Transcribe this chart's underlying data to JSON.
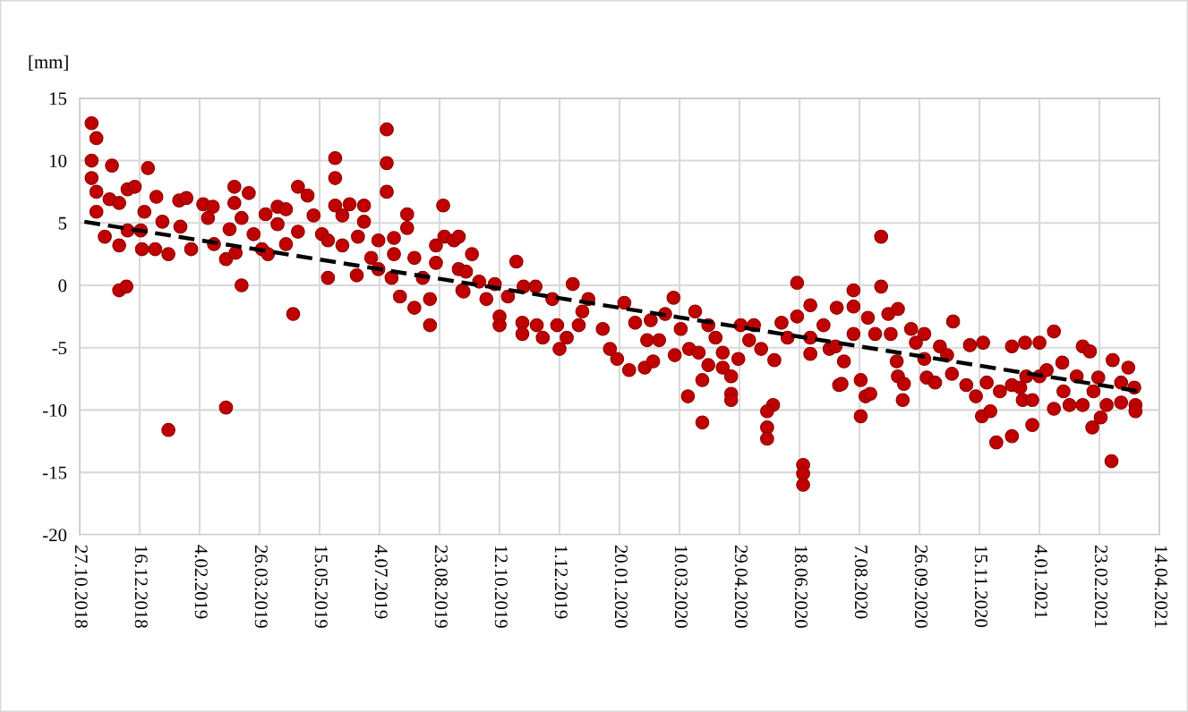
{
  "chart_data": {
    "type": "scatter",
    "ylabel": "[mm]",
    "xlim": [
      "2018-10-27",
      "2021-04-14"
    ],
    "xticks": [
      {
        "value": "2018-10-27",
        "label": "27.10.2018"
      },
      {
        "value": "2018-12-16",
        "label": "16.12.2018"
      },
      {
        "value": "2019-02-04",
        "label": "4.02.2019"
      },
      {
        "value": "2019-03-26",
        "label": "26.03.2019"
      },
      {
        "value": "2019-05-15",
        "label": "15.05.2019"
      },
      {
        "value": "2019-07-04",
        "label": "4.07.2019"
      },
      {
        "value": "2019-08-23",
        "label": "23.08.2019"
      },
      {
        "value": "2019-10-12",
        "label": "12.10.2019"
      },
      {
        "value": "2019-12-01",
        "label": "1.12.2019"
      },
      {
        "value": "2020-01-20",
        "label": "20.01.2020"
      },
      {
        "value": "2020-03-10",
        "label": "10.03.2020"
      },
      {
        "value": "2020-04-29",
        "label": "29.04.2020"
      },
      {
        "value": "2020-06-18",
        "label": "18.06.2020"
      },
      {
        "value": "2020-08-07",
        "label": "7.08.2020"
      },
      {
        "value": "2020-09-26",
        "label": "26.09.2020"
      },
      {
        "value": "2020-11-15",
        "label": "15.11.2020"
      },
      {
        "value": "2021-01-04",
        "label": "4.01.2021"
      },
      {
        "value": "2021-02-23",
        "label": "23.02.2021"
      },
      {
        "value": "2021-04-14",
        "label": "14.04.2021"
      }
    ],
    "ylim": [
      -20,
      15
    ],
    "yticks": [
      -20,
      -15,
      -10,
      -5,
      0,
      5,
      10,
      15
    ],
    "grid": true,
    "series": [
      {
        "color": "#c00000",
        "marker": "circle",
        "x": [
          "2018-11-06",
          "2018-11-10",
          "2018-11-06",
          "2018-11-23",
          "2018-12-23",
          "2018-11-06",
          "2018-11-10",
          "2018-11-21",
          "2018-11-29",
          "2018-12-06",
          "2018-12-12",
          "2018-11-10",
          "2018-11-17",
          "2018-11-29",
          "2018-11-29",
          "2018-12-05",
          "2018-12-06",
          "2018-12-17",
          "2018-12-18",
          "2018-12-29",
          "2019-01-09",
          "2019-01-09",
          "2018-12-30",
          "2018-12-20",
          "2019-01-04",
          "2019-01-18",
          "2019-01-24",
          "2019-01-19",
          "2019-01-28",
          "2019-02-07",
          "2019-02-15",
          "2019-02-11",
          "2019-02-16",
          "2019-02-26",
          "2019-03-06",
          "2019-03-11",
          "2019-02-26",
          "2019-03-05",
          "2019-03-05",
          "2019-03-17",
          "2019-03-11",
          "2019-03-21",
          "2019-03-28",
          "2019-04-02",
          "2019-03-31",
          "2019-03-01",
          "2019-04-27",
          "2019-05-05",
          "2019-04-10",
          "2019-04-17",
          "2019-04-10",
          "2019-04-27",
          "2019-04-17",
          "2019-05-10",
          "2019-04-23",
          "2019-05-22",
          "2019-05-28",
          "2019-05-28",
          "2019-05-28",
          "2019-06-03",
          "2019-06-09",
          "2019-06-21",
          "2019-06-21",
          "2019-05-17",
          "2019-05-22",
          "2019-06-03",
          "2019-06-16",
          "2019-06-15",
          "2019-07-10",
          "2019-07-10",
          "2019-07-10",
          "2019-07-03",
          "2019-06-27",
          "2019-07-03",
          "2019-07-16",
          "2019-07-16",
          "2019-07-27",
          "2019-07-27",
          "2019-07-14",
          "2019-07-21",
          "2019-08-02",
          "2019-08-02",
          "2019-08-15",
          "2019-08-15",
          "2019-08-09",
          "2019-08-26",
          "2019-08-20",
          "2019-08-27",
          "2019-09-04",
          "2019-08-20",
          "2019-09-08",
          "2019-09-11",
          "2019-09-08",
          "2019-09-19",
          "2019-09-14",
          "2019-09-12",
          "2019-09-25",
          "2019-10-01",
          "2019-10-08",
          "2019-10-12",
          "2019-10-12",
          "2019-10-19",
          "2019-10-26",
          "2019-11-01",
          "2019-11-11",
          "2019-10-31",
          "2019-10-31",
          "2019-11-12",
          "2019-11-17",
          "2019-11-25",
          "2019-11-29",
          "2019-12-01",
          "2019-12-07",
          "2019-12-12",
          "2019-12-20",
          "2019-12-25",
          "2019-12-17",
          "2020-01-06",
          "2020-01-12",
          "2020-01-18",
          "2020-01-24",
          "2020-01-28",
          "2020-02-02",
          "2020-02-10",
          "2020-02-12",
          "2020-02-15",
          "2020-02-17",
          "2020-02-22",
          "2020-02-27",
          "2020-03-05",
          "2020-03-06",
          "2020-03-11",
          "2020-03-18",
          "2020-03-26",
          "2020-03-17",
          "2020-03-29",
          "2020-03-29",
          "2020-03-23",
          "2020-04-03",
          "2020-04-09",
          "2020-04-03",
          "2020-04-15",
          "2020-04-15",
          "2020-04-22",
          "2020-04-22",
          "2020-04-22",
          "2020-04-30",
          "2020-04-28",
          "2020-05-07",
          "2020-05-11",
          "2020-05-17",
          "2020-05-28",
          "2020-05-27",
          "2020-05-22",
          "2020-05-22",
          "2020-05-22",
          "2020-06-03",
          "2020-06-08",
          "2020-06-16",
          "2020-06-16",
          "2020-06-21",
          "2020-06-21",
          "2020-06-21",
          "2020-06-27",
          "2020-06-27",
          "2020-06-27",
          "2020-07-08",
          "2020-07-13",
          "2020-07-19",
          "2020-07-21",
          "2020-08-02",
          "2020-08-02",
          "2020-07-18",
          "2020-07-25",
          "2020-07-23",
          "2020-08-02",
          "2020-08-08",
          "2020-08-12",
          "2020-08-08",
          "2020-08-16",
          "2020-08-14",
          "2020-08-20",
          "2020-08-25",
          "2020-08-25",
          "2020-08-31",
          "2020-09-08",
          "2020-09-02",
          "2020-09-07",
          "2020-09-08",
          "2020-09-13",
          "2020-09-12",
          "2020-09-19",
          "2020-09-23",
          "2020-09-30",
          "2020-09-30",
          "2020-10-02",
          "2020-10-13",
          "2020-10-09",
          "2020-10-19",
          "2020-10-24",
          "2020-10-23",
          "2020-11-07",
          "2020-11-18",
          "2020-11-04",
          "2020-11-12",
          "2020-11-17",
          "2020-11-24",
          "2020-11-29",
          "2020-12-12",
          "2020-11-21",
          "2020-12-02",
          "2020-12-12",
          "2020-12-12",
          "2020-12-21",
          "2020-12-23",
          "2020-12-24",
          "2021-01-04",
          "2021-01-16",
          "2020-12-29",
          "2020-12-19",
          "2020-12-29",
          "2021-01-04",
          "2021-01-10",
          "2021-01-16",
          "2021-01-23",
          "2021-01-24",
          "2021-01-29",
          "2021-02-04",
          "2021-02-09",
          "2021-02-09",
          "2021-02-15",
          "2021-02-18",
          "2021-02-17",
          "2021-02-22",
          "2021-02-24",
          "2021-03-01",
          "2021-03-05",
          "2021-03-06",
          "2021-03-13",
          "2021-03-19",
          "2021-03-13",
          "2021-03-24",
          "2021-03-25",
          "2021-03-25"
        ],
        "values": [
          13.0,
          11.8,
          10.0,
          9.6,
          9.4,
          8.6,
          7.5,
          6.9,
          6.6,
          7.7,
          7.9,
          5.9,
          3.9,
          3.2,
          -0.4,
          -0.1,
          4.4,
          4.4,
          2.9,
          2.9,
          2.5,
          -11.6,
          7.1,
          5.9,
          5.1,
          6.8,
          7.0,
          4.7,
          2.9,
          6.5,
          6.3,
          5.4,
          3.3,
          2.1,
          2.6,
          0.0,
          -9.8,
          7.9,
          6.6,
          7.4,
          5.4,
          4.1,
          2.9,
          2.5,
          5.7,
          4.5,
          7.9,
          7.2,
          6.3,
          6.1,
          4.9,
          4.3,
          3.3,
          5.6,
          -2.3,
          0.6,
          10.2,
          8.6,
          6.4,
          5.6,
          6.5,
          6.4,
          5.1,
          4.1,
          3.6,
          3.2,
          3.9,
          0.8,
          12.5,
          9.8,
          7.5,
          3.6,
          2.2,
          1.3,
          3.8,
          2.5,
          5.7,
          4.6,
          0.6,
          -0.9,
          2.2,
          -1.8,
          -1.1,
          -3.2,
          0.6,
          6.4,
          3.2,
          3.9,
          3.6,
          1.8,
          1.3,
          -0.4,
          3.9,
          2.5,
          1.1,
          -0.5,
          0.3,
          -1.1,
          0.1,
          -2.5,
          -3.2,
          -0.9,
          1.9,
          -0.1,
          -0.1,
          -3.0,
          -3.9,
          -3.2,
          -4.2,
          -1.1,
          -3.2,
          -5.1,
          -4.2,
          0.1,
          -2.1,
          -1.1,
          -3.2,
          -3.5,
          -5.1,
          -5.9,
          -1.4,
          -6.8,
          -3.0,
          -6.6,
          -4.4,
          -2.8,
          -6.1,
          -4.4,
          -2.3,
          -1.0,
          -5.6,
          -3.5,
          -5.1,
          -5.4,
          -8.9,
          -7.6,
          -11.0,
          -2.1,
          -3.2,
          -4.2,
          -6.4,
          -5.4,
          -6.6,
          -7.3,
          -8.7,
          -9.2,
          -3.2,
          -5.9,
          -4.4,
          -3.2,
          -5.1,
          -6.0,
          -9.6,
          -10.1,
          -11.4,
          -12.3,
          -3.0,
          -4.2,
          -2.5,
          0.2,
          -14.4,
          -15.1,
          -16.0,
          -1.6,
          -4.2,
          -5.5,
          -3.2,
          -5.1,
          -1.8,
          -8.0,
          -0.4,
          -1.7,
          -4.9,
          -6.1,
          -7.9,
          -3.9,
          -7.6,
          -8.9,
          -10.5,
          -8.7,
          -2.6,
          -3.9,
          -0.1,
          3.9,
          -2.3,
          -1.9,
          -3.9,
          -6.1,
          -7.3,
          -7.9,
          -9.2,
          -3.5,
          -4.6,
          -3.9,
          -5.9,
          -7.4,
          -4.9,
          -7.8,
          -5.6,
          -2.9,
          -7.1,
          -4.8,
          -4.6,
          -8.0,
          -8.9,
          -10.5,
          -10.1,
          -12.6,
          -12.1,
          -7.8,
          -8.5,
          -4.9,
          -8.0,
          -9.2,
          -4.6,
          -7.3,
          -4.6,
          -3.7,
          -11.2,
          -8.2,
          -9.2,
          -7.3,
          -6.8,
          -9.9,
          -6.2,
          -8.5,
          -9.6,
          -7.3,
          -9.6,
          -4.9,
          -5.3,
          -8.5,
          -11.4,
          -7.4,
          -10.6,
          -9.6,
          -14.1,
          -6.0,
          -7.8,
          -6.6,
          -9.4,
          -8.2,
          -9.6,
          -10.1
        ]
      },
      {
        "type": "line",
        "color": "#000000",
        "line_style": "dashed",
        "marker": "none",
        "x": [
          "2018-10-31",
          "2021-03-28"
        ],
        "values": [
          5.1,
          -8.5
        ]
      }
    ]
  }
}
